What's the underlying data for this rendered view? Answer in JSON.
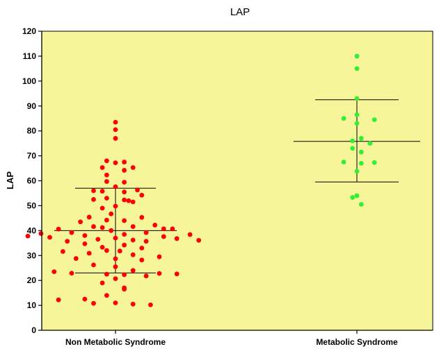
{
  "chart_data": {
    "type": "scatter",
    "title": "LAP",
    "xlabel": "",
    "ylabel": "LAP",
    "ylim": [
      0,
      120
    ],
    "yticks": [
      0,
      10,
      20,
      30,
      40,
      50,
      60,
      70,
      80,
      90,
      100,
      110,
      120
    ],
    "categories": [
      "Non Metabolic Syndrome",
      "Metabolic Syndrome"
    ],
    "plot_background": "#f7f59a",
    "series": [
      {
        "color": "#ff0000",
        "points": [
          {
            "x": "Non Metabolic Syndrome",
            "y": 83.5,
            "offset": 0
          },
          {
            "x": "Non Metabolic Syndrome",
            "y": 80.5,
            "offset": 0
          },
          {
            "x": "Non Metabolic Syndrome",
            "y": 77.0,
            "offset": 0
          },
          {
            "x": "Non Metabolic Syndrome",
            "y": 68.0,
            "offset": -2
          },
          {
            "x": "Non Metabolic Syndrome",
            "y": 67.2,
            "offset": 0
          },
          {
            "x": "Non Metabolic Syndrome",
            "y": 67.5,
            "offset": 2
          },
          {
            "x": "Non Metabolic Syndrome",
            "y": 65.3,
            "offset": -3
          },
          {
            "x": "Non Metabolic Syndrome",
            "y": 65.3,
            "offset": 4
          },
          {
            "x": "Non Metabolic Syndrome",
            "y": 64.2,
            "offset": 2
          },
          {
            "x": "Non Metabolic Syndrome",
            "y": 62.3,
            "offset": -2
          },
          {
            "x": "Non Metabolic Syndrome",
            "y": 59.7,
            "offset": -2
          },
          {
            "x": "Non Metabolic Syndrome",
            "y": 59.4,
            "offset": 2
          },
          {
            "x": "Non Metabolic Syndrome",
            "y": 57.6,
            "offset": 0
          },
          {
            "x": "Non Metabolic Syndrome",
            "y": 56.0,
            "offset": -5
          },
          {
            "x": "Non Metabolic Syndrome",
            "y": 55.8,
            "offset": -3
          },
          {
            "x": "Non Metabolic Syndrome",
            "y": 55.5,
            "offset": 2
          },
          {
            "x": "Non Metabolic Syndrome",
            "y": 56.3,
            "offset": 5
          },
          {
            "x": "Non Metabolic Syndrome",
            "y": 54.2,
            "offset": 6
          },
          {
            "x": "Non Metabolic Syndrome",
            "y": 53.0,
            "offset": -2
          },
          {
            "x": "Non Metabolic Syndrome",
            "y": 52.5,
            "offset": -5
          },
          {
            "x": "Non Metabolic Syndrome",
            "y": 52.3,
            "offset": 2
          },
          {
            "x": "Non Metabolic Syndrome",
            "y": 52.0,
            "offset": 3
          },
          {
            "x": "Non Metabolic Syndrome",
            "y": 51.5,
            "offset": 4
          },
          {
            "x": "Non Metabolic Syndrome",
            "y": 49.8,
            "offset": 0
          },
          {
            "x": "Non Metabolic Syndrome",
            "y": 49.0,
            "offset": -3
          },
          {
            "x": "Non Metabolic Syndrome",
            "y": 46.7,
            "offset": -1
          },
          {
            "x": "Non Metabolic Syndrome",
            "y": 45.4,
            "offset": -6
          },
          {
            "x": "Non Metabolic Syndrome",
            "y": 45.3,
            "offset": 6
          },
          {
            "x": "Non Metabolic Syndrome",
            "y": 44.2,
            "offset": -2
          },
          {
            "x": "Non Metabolic Syndrome",
            "y": 44.0,
            "offset": 2
          },
          {
            "x": "Non Metabolic Syndrome",
            "y": 43.5,
            "offset": -8
          },
          {
            "x": "Non Metabolic Syndrome",
            "y": 42.2,
            "offset": 9
          },
          {
            "x": "Non Metabolic Syndrome",
            "y": 41.6,
            "offset": -5
          },
          {
            "x": "Non Metabolic Syndrome",
            "y": 41.6,
            "offset": 4
          },
          {
            "x": "Non Metabolic Syndrome",
            "y": 41.2,
            "offset": -3
          },
          {
            "x": "Non Metabolic Syndrome",
            "y": 40.7,
            "offset": 11
          },
          {
            "x": "Non Metabolic Syndrome",
            "y": 40.7,
            "offset": 13
          },
          {
            "x": "Non Metabolic Syndrome",
            "y": 40.6,
            "offset": -13
          },
          {
            "x": "Non Metabolic Syndrome",
            "y": 40.0,
            "offset": -1
          },
          {
            "x": "Non Metabolic Syndrome",
            "y": 39.2,
            "offset": 7
          },
          {
            "x": "Non Metabolic Syndrome",
            "y": 39.2,
            "offset": -10
          },
          {
            "x": "Non Metabolic Syndrome",
            "y": 38.8,
            "offset": -17
          },
          {
            "x": "Non Metabolic Syndrome",
            "y": 38.5,
            "offset": 2
          },
          {
            "x": "Non Metabolic Syndrome",
            "y": 38.4,
            "offset": 17
          },
          {
            "x": "Non Metabolic Syndrome",
            "y": 38.0,
            "offset": -7
          },
          {
            "x": "Non Metabolic Syndrome",
            "y": 37.8,
            "offset": -20
          },
          {
            "x": "Non Metabolic Syndrome",
            "y": 37.6,
            "offset": 11
          },
          {
            "x": "Non Metabolic Syndrome",
            "y": 37.3,
            "offset": -15
          },
          {
            "x": "Non Metabolic Syndrome",
            "y": 37.0,
            "offset": 0
          },
          {
            "x": "Non Metabolic Syndrome",
            "y": 36.8,
            "offset": 14
          },
          {
            "x": "Non Metabolic Syndrome",
            "y": 36.5,
            "offset": -4
          },
          {
            "x": "Non Metabolic Syndrome",
            "y": 36.2,
            "offset": 4
          },
          {
            "x": "Non Metabolic Syndrome",
            "y": 36.1,
            "offset": 19
          },
          {
            "x": "Non Metabolic Syndrome",
            "y": 35.7,
            "offset": -11
          },
          {
            "x": "Non Metabolic Syndrome",
            "y": 35.7,
            "offset": 7
          },
          {
            "x": "Non Metabolic Syndrome",
            "y": 34.7,
            "offset": -7
          },
          {
            "x": "Non Metabolic Syndrome",
            "y": 34.2,
            "offset": 2
          },
          {
            "x": "Non Metabolic Syndrome",
            "y": 33.3,
            "offset": -3
          },
          {
            "x": "Non Metabolic Syndrome",
            "y": 33.0,
            "offset": 6
          },
          {
            "x": "Non Metabolic Syndrome",
            "y": 32.0,
            "offset": -2
          },
          {
            "x": "Non Metabolic Syndrome",
            "y": 31.8,
            "offset": 1
          },
          {
            "x": "Non Metabolic Syndrome",
            "y": 31.6,
            "offset": -12
          },
          {
            "x": "Non Metabolic Syndrome",
            "y": 30.9,
            "offset": -6
          },
          {
            "x": "Non Metabolic Syndrome",
            "y": 30.3,
            "offset": 4
          },
          {
            "x": "Non Metabolic Syndrome",
            "y": 29.5,
            "offset": 10
          },
          {
            "x": "Non Metabolic Syndrome",
            "y": 28.8,
            "offset": -9
          },
          {
            "x": "Non Metabolic Syndrome",
            "y": 28.7,
            "offset": 0
          },
          {
            "x": "Non Metabolic Syndrome",
            "y": 28.2,
            "offset": 6
          },
          {
            "x": "Non Metabolic Syndrome",
            "y": 26.2,
            "offset": -5
          },
          {
            "x": "Non Metabolic Syndrome",
            "y": 25.5,
            "offset": 0
          },
          {
            "x": "Non Metabolic Syndrome",
            "y": 24.0,
            "offset": 4
          },
          {
            "x": "Non Metabolic Syndrome",
            "y": 23.5,
            "offset": -14
          },
          {
            "x": "Non Metabolic Syndrome",
            "y": 22.9,
            "offset": -10
          },
          {
            "x": "Non Metabolic Syndrome",
            "y": 22.8,
            "offset": 10
          },
          {
            "x": "Non Metabolic Syndrome",
            "y": 22.6,
            "offset": 14
          },
          {
            "x": "Non Metabolic Syndrome",
            "y": 22.5,
            "offset": -2
          },
          {
            "x": "Non Metabolic Syndrome",
            "y": 22.3,
            "offset": 2
          },
          {
            "x": "Non Metabolic Syndrome",
            "y": 21.8,
            "offset": 7
          },
          {
            "x": "Non Metabolic Syndrome",
            "y": 20.7,
            "offset": 0
          },
          {
            "x": "Non Metabolic Syndrome",
            "y": 19.0,
            "offset": -3
          },
          {
            "x": "Non Metabolic Syndrome",
            "y": 17.0,
            "offset": 2
          },
          {
            "x": "Non Metabolic Syndrome",
            "y": 16.5,
            "offset": 2
          },
          {
            "x": "Non Metabolic Syndrome",
            "y": 14.0,
            "offset": -2
          },
          {
            "x": "Non Metabolic Syndrome",
            "y": 12.5,
            "offset": -7
          },
          {
            "x": "Non Metabolic Syndrome",
            "y": 12.2,
            "offset": -13
          },
          {
            "x": "Non Metabolic Syndrome",
            "y": 11.0,
            "offset": 0
          },
          {
            "x": "Non Metabolic Syndrome",
            "y": 10.8,
            "offset": -5
          },
          {
            "x": "Non Metabolic Syndrome",
            "y": 10.5,
            "offset": 4
          },
          {
            "x": "Non Metabolic Syndrome",
            "y": 10.2,
            "offset": 8
          }
        ]
      },
      {
        "color": "#33ee33",
        "points": [
          {
            "x": "Metabolic Syndrome",
            "y": 110.0,
            "offset": 0
          },
          {
            "x": "Metabolic Syndrome",
            "y": 105.0,
            "offset": 0
          },
          {
            "x": "Metabolic Syndrome",
            "y": 93.0,
            "offset": 0
          },
          {
            "x": "Metabolic Syndrome",
            "y": 86.5,
            "offset": 0
          },
          {
            "x": "Metabolic Syndrome",
            "y": 85.0,
            "offset": -3
          },
          {
            "x": "Metabolic Syndrome",
            "y": 84.5,
            "offset": 4
          },
          {
            "x": "Metabolic Syndrome",
            "y": 83.0,
            "offset": 0
          },
          {
            "x": "Metabolic Syndrome",
            "y": 77.0,
            "offset": 1
          },
          {
            "x": "Metabolic Syndrome",
            "y": 76.0,
            "offset": -1
          },
          {
            "x": "Metabolic Syndrome",
            "y": 75.0,
            "offset": 3
          },
          {
            "x": "Metabolic Syndrome",
            "y": 73.0,
            "offset": -1
          },
          {
            "x": "Metabolic Syndrome",
            "y": 71.5,
            "offset": 1
          },
          {
            "x": "Metabolic Syndrome",
            "y": 67.5,
            "offset": -3
          },
          {
            "x": "Metabolic Syndrome",
            "y": 67.0,
            "offset": 1
          },
          {
            "x": "Metabolic Syndrome",
            "y": 67.3,
            "offset": 4
          },
          {
            "x": "Metabolic Syndrome",
            "y": 63.8,
            "offset": 0
          },
          {
            "x": "Metabolic Syndrome",
            "y": 54.0,
            "offset": 0
          },
          {
            "x": "Metabolic Syndrome",
            "y": 53.3,
            "offset": -1
          },
          {
            "x": "Metabolic Syndrome",
            "y": 50.5,
            "offset": 1
          }
        ]
      }
    ],
    "summary_bars": [
      {
        "x": "Non Metabolic Syndrome",
        "mean": 40.0,
        "upper": 57.0,
        "lower": 23.0
      },
      {
        "x": "Metabolic Syndrome",
        "mean": 75.8,
        "upper": 92.5,
        "lower": 59.5
      }
    ]
  }
}
